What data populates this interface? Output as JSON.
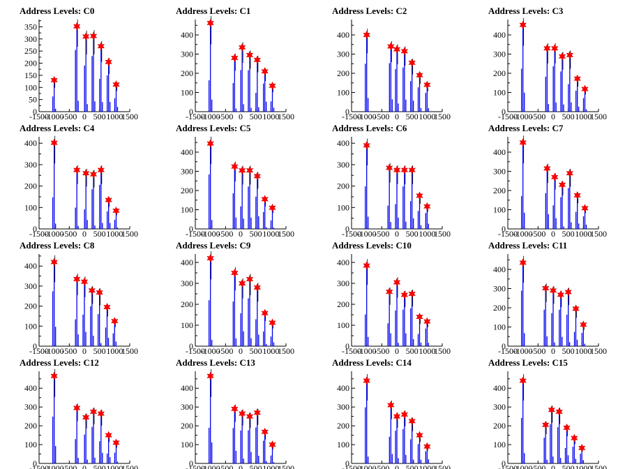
{
  "chart_data": [
    {
      "type": "bar",
      "title": "Address Levels: C0",
      "xlim": [
        -1500,
        1500
      ],
      "ylim": [
        0,
        380
      ],
      "yticks": [
        0,
        50,
        100,
        150,
        200,
        250,
        300,
        350
      ],
      "xticks": [
        -1500,
        -1000,
        -500,
        0,
        500,
        1000,
        1500
      ],
      "peaks": [
        {
          "x": -1000,
          "y": 130
        },
        {
          "x": -250,
          "y": 352
        },
        {
          "x": 50,
          "y": 310
        },
        {
          "x": 300,
          "y": 312
        },
        {
          "x": 550,
          "y": 270
        },
        {
          "x": 800,
          "y": 205
        },
        {
          "x": 1050,
          "y": 112
        }
      ]
    },
    {
      "type": "bar",
      "title": "Address Levels: C1",
      "xlim": [
        -1500,
        1500
      ],
      "ylim": [
        0,
        480
      ],
      "yticks": [
        0,
        100,
        200,
        300,
        400
      ],
      "xticks": [
        -1500,
        -1000,
        -500,
        0,
        500,
        1000,
        1500
      ],
      "peaks": [
        {
          "x": -1000,
          "y": 462
        },
        {
          "x": -200,
          "y": 280
        },
        {
          "x": 50,
          "y": 335
        },
        {
          "x": 300,
          "y": 295
        },
        {
          "x": 550,
          "y": 270
        },
        {
          "x": 800,
          "y": 210
        },
        {
          "x": 1050,
          "y": 135
        }
      ]
    },
    {
      "type": "bar",
      "title": "Address Levels: C2",
      "xlim": [
        -1500,
        1500
      ],
      "ylim": [
        0,
        480
      ],
      "yticks": [
        0,
        100,
        200,
        300,
        400
      ],
      "xticks": [
        -1500,
        -1000,
        -500,
        0,
        500,
        1000,
        1500
      ],
      "peaks": [
        {
          "x": -1000,
          "y": 400
        },
        {
          "x": -200,
          "y": 340
        },
        {
          "x": 0,
          "y": 325
        },
        {
          "x": 250,
          "y": 315
        },
        {
          "x": 500,
          "y": 255
        },
        {
          "x": 750,
          "y": 190
        },
        {
          "x": 1000,
          "y": 140
        }
      ]
    },
    {
      "type": "bar",
      "title": "Address Levels: C3",
      "xlim": [
        -1500,
        1500
      ],
      "ylim": [
        0,
        480
      ],
      "yticks": [
        0,
        100,
        200,
        300,
        400
      ],
      "xticks": [
        -1500,
        -1000,
        -500,
        0,
        500,
        1000,
        1500
      ],
      "peaks": [
        {
          "x": -1000,
          "y": 452
        },
        {
          "x": -200,
          "y": 330
        },
        {
          "x": 50,
          "y": 330
        },
        {
          "x": 300,
          "y": 288
        },
        {
          "x": 550,
          "y": 295
        },
        {
          "x": 800,
          "y": 172
        },
        {
          "x": 1050,
          "y": 118
        }
      ]
    },
    {
      "type": "bar",
      "title": "Address Levels: C4",
      "xlim": [
        -1500,
        1500
      ],
      "ylim": [
        0,
        430
      ],
      "yticks": [
        0,
        100,
        200,
        300,
        400
      ],
      "xticks": [
        -1500,
        -1000,
        -500,
        0,
        500,
        1000,
        1500
      ],
      "peaks": [
        {
          "x": -1000,
          "y": 402
        },
        {
          "x": -250,
          "y": 275
        },
        {
          "x": 50,
          "y": 260
        },
        {
          "x": 300,
          "y": 255
        },
        {
          "x": 550,
          "y": 275
        },
        {
          "x": 800,
          "y": 135
        },
        {
          "x": 1050,
          "y": 85
        }
      ]
    },
    {
      "type": "bar",
      "title": "Address Levels: C5",
      "xlim": [
        -1500,
        1500
      ],
      "ylim": [
        0,
        480
      ],
      "yticks": [
        0,
        100,
        200,
        300,
        400
      ],
      "xticks": [
        -1500,
        -1000,
        -500,
        0,
        500,
        1000,
        1500
      ],
      "peaks": [
        {
          "x": -1000,
          "y": 445
        },
        {
          "x": -200,
          "y": 325
        },
        {
          "x": 50,
          "y": 305
        },
        {
          "x": 300,
          "y": 305
        },
        {
          "x": 550,
          "y": 275
        },
        {
          "x": 800,
          "y": 155
        },
        {
          "x": 1050,
          "y": 110
        }
      ]
    },
    {
      "type": "bar",
      "title": "Address Levels: C6",
      "xlim": [
        -1500,
        1500
      ],
      "ylim": [
        0,
        430
      ],
      "yticks": [
        0,
        100,
        200,
        300,
        400
      ],
      "xticks": [
        -1500,
        -1000,
        -500,
        0,
        500,
        1000,
        1500
      ],
      "peaks": [
        {
          "x": -1000,
          "y": 390
        },
        {
          "x": -250,
          "y": 285
        },
        {
          "x": 0,
          "y": 275
        },
        {
          "x": 250,
          "y": 275
        },
        {
          "x": 500,
          "y": 275
        },
        {
          "x": 750,
          "y": 155
        },
        {
          "x": 1000,
          "y": 105
        }
      ]
    },
    {
      "type": "bar",
      "title": "Address Levels: C7",
      "xlim": [
        -1500,
        1500
      ],
      "ylim": [
        0,
        480
      ],
      "yticks": [
        0,
        100,
        200,
        300,
        400
      ],
      "xticks": [
        -1500,
        -1000,
        -500,
        0,
        500,
        1000,
        1500
      ],
      "peaks": [
        {
          "x": -1000,
          "y": 450
        },
        {
          "x": -200,
          "y": 315
        },
        {
          "x": 50,
          "y": 270
        },
        {
          "x": 300,
          "y": 230
        },
        {
          "x": 550,
          "y": 290
        },
        {
          "x": 800,
          "y": 175
        },
        {
          "x": 1050,
          "y": 108
        }
      ]
    },
    {
      "type": "bar",
      "title": "Address Levels: C8",
      "xlim": [
        -1500,
        1500
      ],
      "ylim": [
        0,
        460
      ],
      "yticks": [
        0,
        100,
        200,
        300,
        400
      ],
      "xticks": [
        -1500,
        -1000,
        -500,
        0,
        500,
        1000,
        1500
      ],
      "peaks": [
        {
          "x": -1000,
          "y": 420
        },
        {
          "x": -250,
          "y": 335
        },
        {
          "x": 0,
          "y": 322
        },
        {
          "x": 250,
          "y": 278
        },
        {
          "x": 500,
          "y": 268
        },
        {
          "x": 750,
          "y": 195
        },
        {
          "x": 1000,
          "y": 125
        }
      ]
    },
    {
      "type": "bar",
      "title": "Address Levels: C9",
      "xlim": [
        -1500,
        1500
      ],
      "ylim": [
        0,
        440
      ],
      "yticks": [
        0,
        100,
        200,
        300,
        400
      ],
      "xticks": [
        -1500,
        -1000,
        -500,
        0,
        500,
        1000,
        1500
      ],
      "peaks": [
        {
          "x": -1000,
          "y": 420
        },
        {
          "x": -200,
          "y": 350
        },
        {
          "x": 50,
          "y": 300
        },
        {
          "x": 300,
          "y": 320
        },
        {
          "x": 550,
          "y": 280
        },
        {
          "x": 800,
          "y": 158
        },
        {
          "x": 1050,
          "y": 112
        }
      ]
    },
    {
      "type": "bar",
      "title": "Address Levels: C10",
      "xlim": [
        -1500,
        1500
      ],
      "ylim": [
        0,
        440
      ],
      "yticks": [
        0,
        100,
        200,
        300,
        400
      ],
      "xticks": [
        -1500,
        -1000,
        -500,
        0,
        500,
        1000,
        1500
      ],
      "peaks": [
        {
          "x": -1000,
          "y": 385
        },
        {
          "x": -250,
          "y": 260
        },
        {
          "x": 0,
          "y": 305
        },
        {
          "x": 250,
          "y": 245
        },
        {
          "x": 500,
          "y": 250
        },
        {
          "x": 750,
          "y": 140
        },
        {
          "x": 1000,
          "y": 118
        }
      ]
    },
    {
      "type": "bar",
      "title": "Address Levels: C11",
      "xlim": [
        -1500,
        1500
      ],
      "ylim": [
        0,
        480
      ],
      "yticks": [
        0,
        100,
        200,
        300,
        400
      ],
      "xticks": [
        -1500,
        -1000,
        -500,
        0,
        500,
        1000,
        1500
      ],
      "peaks": [
        {
          "x": -1000,
          "y": 435
        },
        {
          "x": -250,
          "y": 302
        },
        {
          "x": 0,
          "y": 290
        },
        {
          "x": 250,
          "y": 268
        },
        {
          "x": 500,
          "y": 282
        },
        {
          "x": 750,
          "y": 195
        },
        {
          "x": 1000,
          "y": 112
        }
      ]
    },
    {
      "type": "bar",
      "title": "Address Levels: C12",
      "xlim": [
        -1500,
        1500
      ],
      "ylim": [
        0,
        490
      ],
      "yticks": [
        0,
        100,
        200,
        300,
        400
      ],
      "xticks": [
        -1500,
        -1000,
        -500,
        0,
        500,
        1000,
        1500
      ],
      "peaks": [
        {
          "x": -1000,
          "y": 465
        },
        {
          "x": -250,
          "y": 295
        },
        {
          "x": 50,
          "y": 245
        },
        {
          "x": 300,
          "y": 275
        },
        {
          "x": 550,
          "y": 265
        },
        {
          "x": 800,
          "y": 150
        },
        {
          "x": 1050,
          "y": 110
        }
      ]
    },
    {
      "type": "bar",
      "title": "Address Levels: C13",
      "xlim": [
        -1500,
        1500
      ],
      "ylim": [
        0,
        490
      ],
      "yticks": [
        0,
        100,
        200,
        300,
        400
      ],
      "xticks": [
        -1500,
        -1000,
        -500,
        0,
        500,
        1000,
        1500
      ],
      "peaks": [
        {
          "x": -1000,
          "y": 465
        },
        {
          "x": -200,
          "y": 290
        },
        {
          "x": 50,
          "y": 265
        },
        {
          "x": 300,
          "y": 250
        },
        {
          "x": 550,
          "y": 270
        },
        {
          "x": 800,
          "y": 168
        },
        {
          "x": 1050,
          "y": 100
        }
      ]
    },
    {
      "type": "bar",
      "title": "Address Levels: C14",
      "xlim": [
        -1500,
        1500
      ],
      "ylim": [
        0,
        490
      ],
      "yticks": [
        0,
        100,
        200,
        300,
        400
      ],
      "xticks": [
        -1500,
        -1000,
        -500,
        0,
        500,
        1000,
        1500
      ],
      "peaks": [
        {
          "x": -1000,
          "y": 440
        },
        {
          "x": -200,
          "y": 310
        },
        {
          "x": 0,
          "y": 250
        },
        {
          "x": 250,
          "y": 260
        },
        {
          "x": 500,
          "y": 225
        },
        {
          "x": 750,
          "y": 150
        },
        {
          "x": 1000,
          "y": 90
        }
      ]
    },
    {
      "type": "bar",
      "title": "Address Levels: C15",
      "xlim": [
        -1500,
        1500
      ],
      "ylim": [
        0,
        490
      ],
      "yticks": [
        0,
        100,
        200,
        300,
        400
      ],
      "xticks": [
        -1500,
        -1000,
        -500,
        0,
        500,
        1000,
        1500
      ],
      "peaks": [
        {
          "x": -1000,
          "y": 440
        },
        {
          "x": -250,
          "y": 205
        },
        {
          "x": -50,
          "y": 285
        },
        {
          "x": 200,
          "y": 275
        },
        {
          "x": 450,
          "y": 190
        },
        {
          "x": 700,
          "y": 135
        },
        {
          "x": 950,
          "y": 82
        }
      ]
    }
  ]
}
